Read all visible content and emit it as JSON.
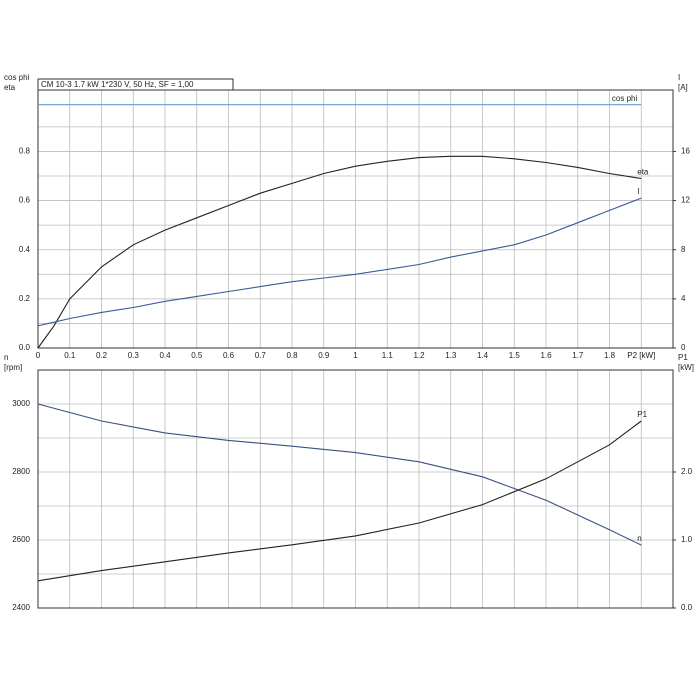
{
  "chart_data": [
    {
      "type": "line",
      "info": "CM 10-3   1.7 kW   1*230 V, 50 Hz, SF = 1,00",
      "ylabel": [
        "cos phi",
        "eta"
      ],
      "y2label": [
        "I",
        "[A]"
      ],
      "x": [
        0,
        0.05,
        0.1,
        0.2,
        0.3,
        0.4,
        0.5,
        0.6,
        0.7,
        0.8,
        0.9,
        1.0,
        1.1,
        1.2,
        1.3,
        1.4,
        1.5,
        1.6,
        1.7,
        1.8,
        1.9
      ],
      "series": [
        {
          "name": "cos phi",
          "color": "#6a9ad0",
          "values": [
            0.99,
            0.99,
            0.99,
            0.99,
            0.99,
            0.99,
            0.99,
            0.99,
            0.99,
            0.99,
            0.99,
            0.99,
            0.99,
            0.99,
            0.99,
            0.99,
            0.99,
            0.99,
            0.99,
            0.99,
            0.99
          ]
        },
        {
          "name": "eta",
          "color": "#222222",
          "values": [
            0,
            0.09,
            0.2,
            0.33,
            0.42,
            0.48,
            0.53,
            0.58,
            0.63,
            0.67,
            0.71,
            0.74,
            0.76,
            0.775,
            0.78,
            0.78,
            0.77,
            0.755,
            0.735,
            0.71,
            0.69
          ]
        },
        {
          "name": "I",
          "color": "#3a5a9a",
          "axis": "y2",
          "values": [
            1.8,
            2.1,
            2.4,
            2.9,
            3.3,
            3.8,
            4.2,
            4.6,
            5.0,
            5.4,
            5.7,
            6.0,
            6.4,
            6.8,
            7.4,
            7.9,
            8.4,
            9.2,
            10.2,
            11.2,
            12.2
          ]
        }
      ],
      "xlim": [
        0,
        2.0
      ],
      "xticks": [
        0,
        0.1,
        0.2,
        0.3,
        0.4,
        0.5,
        0.6,
        0.7,
        0.8,
        0.9,
        1.0,
        1.1,
        1.2,
        1.3,
        1.4,
        1.5,
        1.6,
        1.7,
        1.8,
        {
          "value": 1.9,
          "label": "P2 [kW]"
        }
      ],
      "ylim": [
        0,
        1.05
      ],
      "yticks": [
        {
          "value": 0,
          "label": "0.0"
        },
        0.2,
        0.4,
        0.6,
        0.8
      ],
      "y2lim": [
        0,
        21
      ],
      "y2ticks": [
        0,
        4,
        8,
        12,
        16
      ],
      "grid": true
    },
    {
      "type": "line",
      "ylabel": [
        "n",
        "[rpm]"
      ],
      "y2label": [
        "P1",
        "[kW]"
      ],
      "x": [
        0,
        0.2,
        0.4,
        0.6,
        0.8,
        1.0,
        1.2,
        1.4,
        1.6,
        1.8,
        1.9
      ],
      "series": [
        {
          "name": "n",
          "color": "#3a5080",
          "values": [
            3000,
            2950,
            2915,
            2893,
            2876,
            2857,
            2830,
            2786,
            2717,
            2630,
            2585
          ]
        },
        {
          "name": "P1",
          "color": "#222222",
          "axis": "y2",
          "values": [
            0.4,
            0.55,
            0.68,
            0.81,
            0.93,
            1.06,
            1.25,
            1.52,
            1.9,
            2.4,
            2.75
          ]
        }
      ],
      "xlim": [
        0,
        2.0
      ],
      "xticks": [
        0,
        0.1,
        0.2,
        0.3,
        0.4,
        0.5,
        0.6,
        0.7,
        0.8,
        0.9,
        1.0,
        1.1,
        1.2,
        1.3,
        1.4,
        1.5,
        1.6,
        1.7,
        1.8,
        1.9
      ],
      "xtick_labels": false,
      "ylim": [
        2400,
        3100
      ],
      "yticks": [
        2400,
        2600,
        2800,
        3000
      ],
      "y2lim": [
        0,
        3.5
      ],
      "y2ticks": [
        {
          "value": 0,
          "label": "0.0"
        },
        {
          "value": 1,
          "label": "1.0"
        },
        {
          "value": 2,
          "label": "2.0"
        }
      ],
      "grid": true
    }
  ]
}
